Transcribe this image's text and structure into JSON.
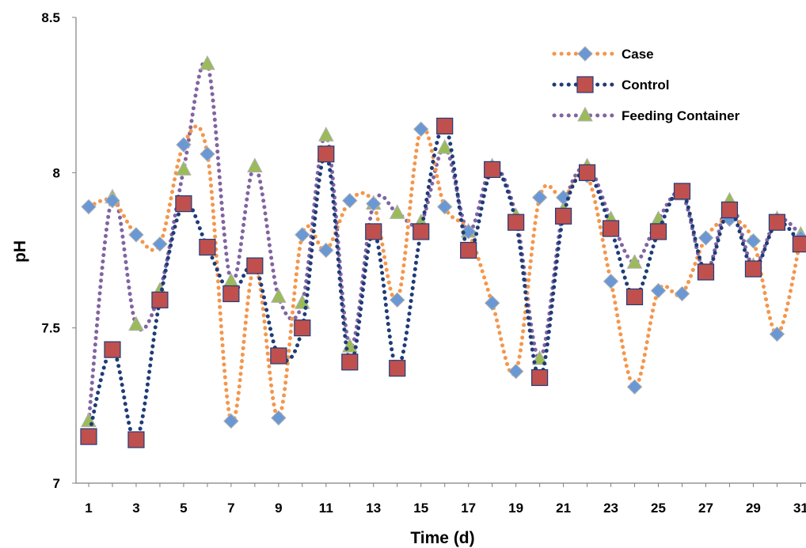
{
  "chart_data": {
    "type": "line",
    "xlabel": "Time (d)",
    "ylabel": "pH",
    "xlim": [
      1,
      31
    ],
    "ylim": [
      7,
      8.5
    ],
    "x": [
      1,
      2,
      3,
      4,
      5,
      6,
      7,
      8,
      9,
      10,
      11,
      12,
      13,
      14,
      15,
      16,
      17,
      18,
      19,
      20,
      21,
      22,
      23,
      24,
      25,
      26,
      27,
      28,
      29,
      30,
      31
    ],
    "x_tick_labels": [
      "1",
      "3",
      "5",
      "7",
      "9",
      "11",
      "13",
      "15",
      "17",
      "19",
      "21",
      "23",
      "25",
      "27",
      "29",
      "31"
    ],
    "y_tick_labels": [
      "7",
      "7.5",
      "8",
      "8.5"
    ],
    "grid": false,
    "legend_position": "top-right",
    "series": [
      {
        "name": "Case",
        "color": "#F4964B",
        "marker": "diamond",
        "marker_fill": "#6A98D4",
        "values": [
          7.89,
          7.91,
          7.8,
          7.77,
          8.09,
          8.06,
          7.2,
          7.7,
          7.21,
          7.8,
          7.75,
          7.91,
          7.9,
          7.59,
          8.14,
          7.89,
          7.81,
          7.58,
          7.36,
          7.92,
          7.92,
          7.99,
          7.65,
          7.31,
          7.62,
          7.61,
          7.79,
          7.85,
          7.78,
          7.48,
          7.79
        ]
      },
      {
        "name": "Control",
        "color": "#1F3C78",
        "marker": "square",
        "marker_fill": "#C0504D",
        "values": [
          7.15,
          7.43,
          7.14,
          7.59,
          7.9,
          7.76,
          7.61,
          7.7,
          7.41,
          7.5,
          8.06,
          7.39,
          7.81,
          7.37,
          7.81,
          8.15,
          7.75,
          8.01,
          7.84,
          7.34,
          7.86,
          8.0,
          7.82,
          7.6,
          7.81,
          7.94,
          7.68,
          7.88,
          7.69,
          7.84,
          7.77
        ]
      },
      {
        "name": "Feeding Container",
        "color": "#8064A2",
        "marker": "triangle",
        "marker_fill": "#9BBB59",
        "values": [
          7.2,
          7.92,
          7.51,
          7.62,
          8.01,
          8.35,
          7.65,
          8.02,
          7.6,
          7.58,
          8.12,
          7.44,
          7.9,
          7.87,
          7.84,
          8.08,
          7.81,
          8.02,
          7.86,
          7.4,
          7.88,
          8.02,
          7.85,
          7.71,
          7.85,
          7.93,
          7.68,
          7.91,
          7.7,
          7.85,
          7.8
        ]
      }
    ]
  }
}
